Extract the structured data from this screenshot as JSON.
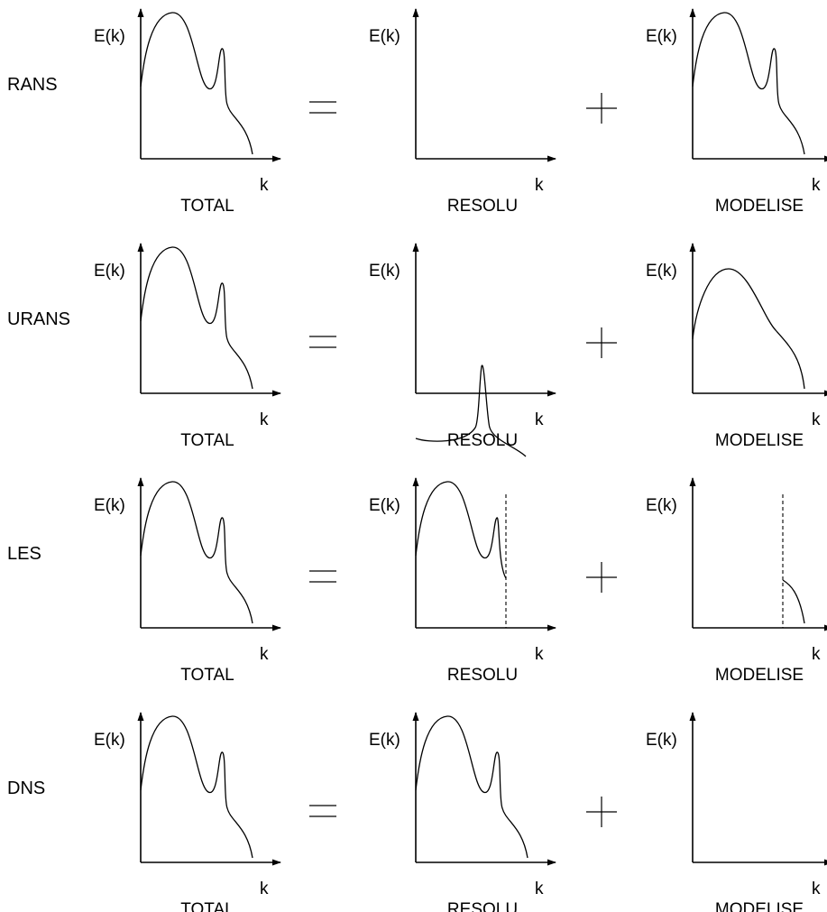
{
  "axis_labels": {
    "y": "E(k)",
    "x": "k"
  },
  "rows": [
    {
      "label": "RANS",
      "panels": [
        {
          "caption": "TOTAL",
          "curve": "full",
          "cutoff": false
        },
        {
          "caption": "RESOLU",
          "curve": "none",
          "cutoff": false
        },
        {
          "caption": "MODELISE",
          "curve": "full",
          "cutoff": false
        }
      ]
    },
    {
      "label": "URANS",
      "panels": [
        {
          "caption": "TOTAL",
          "curve": "full",
          "cutoff": false
        },
        {
          "caption": "RESOLU",
          "curve": "peak",
          "cutoff": false
        },
        {
          "caption": "MODELISE",
          "curve": "smooth",
          "cutoff": false
        }
      ]
    },
    {
      "label": "LES",
      "panels": [
        {
          "caption": "TOTAL",
          "curve": "full",
          "cutoff": false
        },
        {
          "caption": "RESOLU",
          "curve": "resolved-part",
          "cutoff": true
        },
        {
          "caption": "MODELISE",
          "curve": "tail",
          "cutoff": true
        }
      ]
    },
    {
      "label": "DNS",
      "panels": [
        {
          "caption": "TOTAL",
          "curve": "full",
          "cutoff": false
        },
        {
          "caption": "RESOLU",
          "curve": "full",
          "cutoff": false
        },
        {
          "caption": "MODELISE",
          "curve": "none",
          "cutoff": false
        }
      ]
    }
  ],
  "operators": {
    "equals": "=",
    "plus": "+"
  }
}
